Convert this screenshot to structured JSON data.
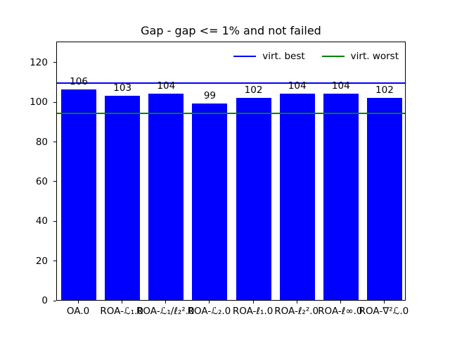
{
  "window": {
    "background_color": "#ffffff"
  },
  "chart_data": {
    "type": "bar",
    "title": "Gap - gap <= 1% and not failed",
    "categories": [
      "OA.0",
      "ROA-ℒ₁.0",
      "ROA-ℒ₁/ℓ₂².0",
      "ROA-ℒ₂.0",
      "ROA-ℓ₁.0",
      "ROA-ℓ₂².0",
      "ROA-ℓ∞.0",
      "ROA-∇²ℒ.0"
    ],
    "values": [
      106,
      103,
      104,
      99,
      102,
      104,
      104,
      102
    ],
    "bar_value_labels": [
      "106",
      "103",
      "104",
      "99",
      "102",
      "104",
      "104",
      "102"
    ],
    "bar_color": "#0000ff",
    "hlines": [
      {
        "label": "virt. best",
        "value": 109.2,
        "color": "#0000ff"
      },
      {
        "label": "virt. worst",
        "value": 94.0,
        "color": "#008000"
      }
    ],
    "xlabel": "",
    "ylabel": "",
    "ylim": [
      0,
      130.6
    ],
    "yticks": [
      0,
      20,
      40,
      60,
      80,
      100,
      120
    ],
    "grid": false,
    "legend_position": "upper right horizontal",
    "axes_color": "#000000",
    "text_color": "#000000"
  }
}
